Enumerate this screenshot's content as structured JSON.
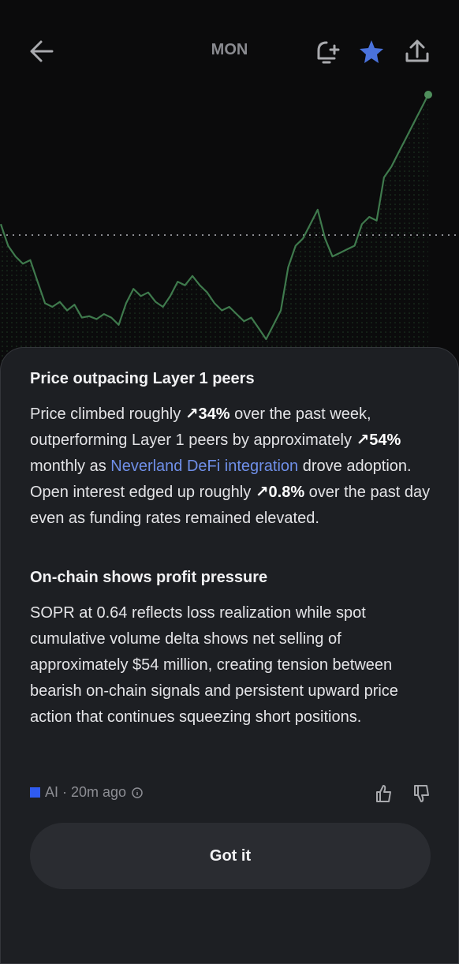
{
  "header": {
    "title": "MON"
  },
  "chart": {
    "type": "line",
    "values": [
      200,
      170,
      155,
      145,
      150,
      120,
      90,
      85,
      92,
      80,
      88,
      70,
      72,
      68,
      75,
      70,
      60,
      90,
      110,
      100,
      105,
      92,
      85,
      100,
      120,
      115,
      128,
      115,
      105,
      90,
      80,
      85,
      75,
      65,
      70,
      55,
      40,
      60,
      80,
      140,
      170,
      180,
      200,
      220,
      180,
      155,
      160,
      165,
      170,
      200,
      210,
      205,
      265,
      280,
      300,
      320,
      340,
      360,
      380
    ]
  },
  "sheet": {
    "sections": [
      {
        "heading": "Price outpacing Layer 1 peers",
        "segments": [
          {
            "text": "Price climbed roughly ",
            "style": "plain"
          },
          {
            "text": "↗34%",
            "style": "bold"
          },
          {
            "text": " over the past week, outperforming Layer 1 peers by approximately ",
            "style": "plain"
          },
          {
            "text": "↗54%",
            "style": "bold"
          },
          {
            "text": " monthly as ",
            "style": "plain"
          },
          {
            "text": "Neverland DeFi integration",
            "style": "link"
          },
          {
            "text": " drove adoption. Open interest edged up roughly ",
            "style": "plain"
          },
          {
            "text": "↗0.8%",
            "style": "bold"
          },
          {
            "text": " over the past day even as funding rates remained elevated.",
            "style": "plain"
          }
        ]
      },
      {
        "heading": "On-chain shows profit pressure",
        "segments": [
          {
            "text": "SOPR at 0.64 reflects loss realization while spot cumulative volume delta shows net selling of approximately $54 million, creating tension between bearish on-chain signals and persistent upward price action that continues squeezing short positions.",
            "style": "plain"
          }
        ]
      }
    ],
    "source": "AI · 20m ago",
    "button": "Got it"
  }
}
